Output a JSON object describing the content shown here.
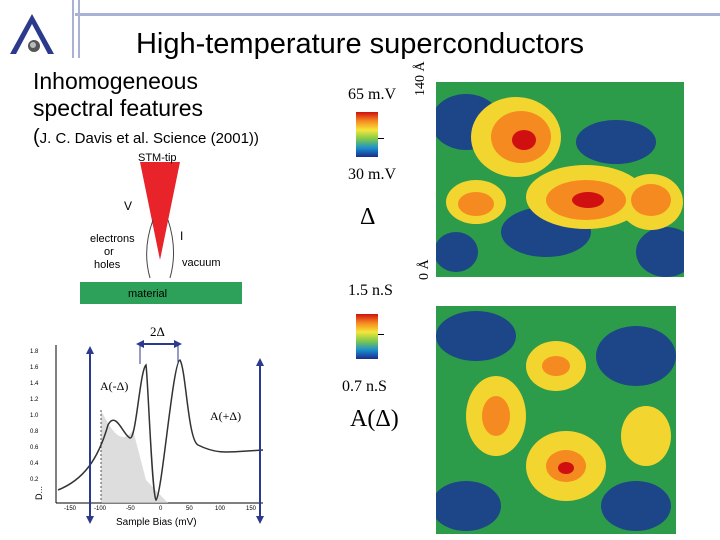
{
  "title": "High-temperature superconductors",
  "subtitle_line1": "Inhomogeneous",
  "subtitle_line2": "spectral features",
  "citation_paren": "(",
  "citation": "J. C. Davis et al. Science (2001))",
  "stm": {
    "tip_label": "STM-tip",
    "v_label": "V",
    "electrons_label": "electrons",
    "or_label": "or",
    "holes_label": "holes",
    "i_label": "I",
    "vacuum_label": "vacuum",
    "material_label": "material"
  },
  "top_colorbar": {
    "max": "65 m.V",
    "min": "30 m.V"
  },
  "delta_label": "Δ",
  "scale_top": "140 Å",
  "scale_bottom": "0 Å",
  "bottom_colorbar": {
    "max": "1.5 n.S",
    "min": "0.7 n.S"
  },
  "a_delta_label": "A(Δ)",
  "spectrum": {
    "two_delta": "2Δ",
    "a_minus": "A(-Δ)",
    "a_plus": "A(+Δ)",
    "y_axis_label": "D...",
    "y_ticks": [
      "1.8",
      "1.6",
      "1.4",
      "1.2",
      "1.0",
      "0.8",
      "0.6",
      "0.4",
      "0.2"
    ],
    "x_ticks": [
      "-150",
      "-100",
      "-50",
      "0",
      "50",
      "100",
      "150"
    ],
    "x_label": "Sample Bias (mV)"
  }
}
